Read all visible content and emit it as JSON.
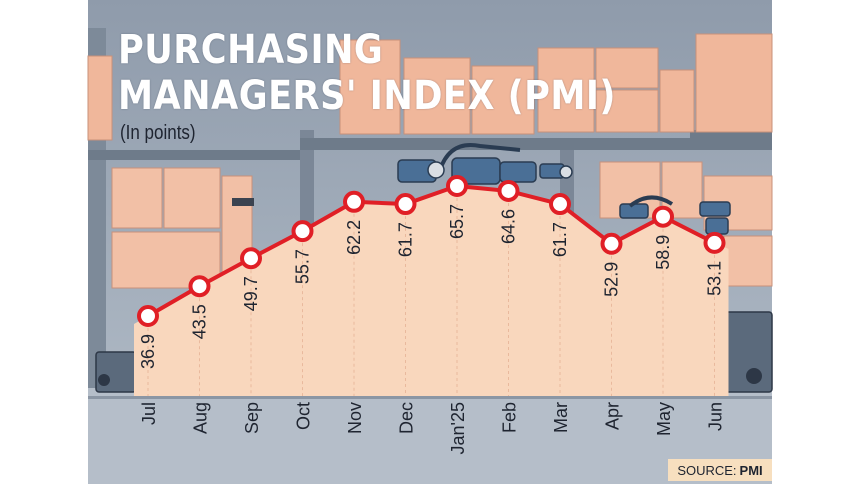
{
  "title_lines": [
    "PURCHASING",
    "MANAGERS' INDEX (PMI)"
  ],
  "subtitle": "(In points)",
  "source": {
    "label": "SOURCE:",
    "name": "PMI"
  },
  "colors": {
    "area": "#f9d7bd",
    "line": "#e01f26",
    "marker_fill": "#ffffff",
    "background": "#9aa6b4",
    "source_bg": "#f7dfbf"
  },
  "chart_data": {
    "type": "area",
    "title": "PURCHASING MANAGERS' INDEX (PMI)",
    "subtitle": "(In points)",
    "categories": [
      "Jul",
      "Aug",
      "Sep",
      "Oct",
      "Nov",
      "Dec",
      "Jan'25",
      "Feb",
      "Mar",
      "Apr",
      "May",
      "Jun"
    ],
    "series": [
      {
        "values": [
          36.9,
          43.5,
          49.7,
          55.7,
          62.2,
          61.7,
          65.7,
          64.6,
          61.7,
          52.9,
          58.9,
          53.1
        ]
      }
    ],
    "data_labels": [
      "36.9",
      "43.5",
      "49.7",
      "55.7",
      "62.2",
      "61.7",
      "65.7",
      "64.6",
      "61.7",
      "52.9",
      "58.9",
      "53.1"
    ],
    "ylim": [
      0,
      70
    ],
    "grid": false,
    "legend": "none"
  }
}
